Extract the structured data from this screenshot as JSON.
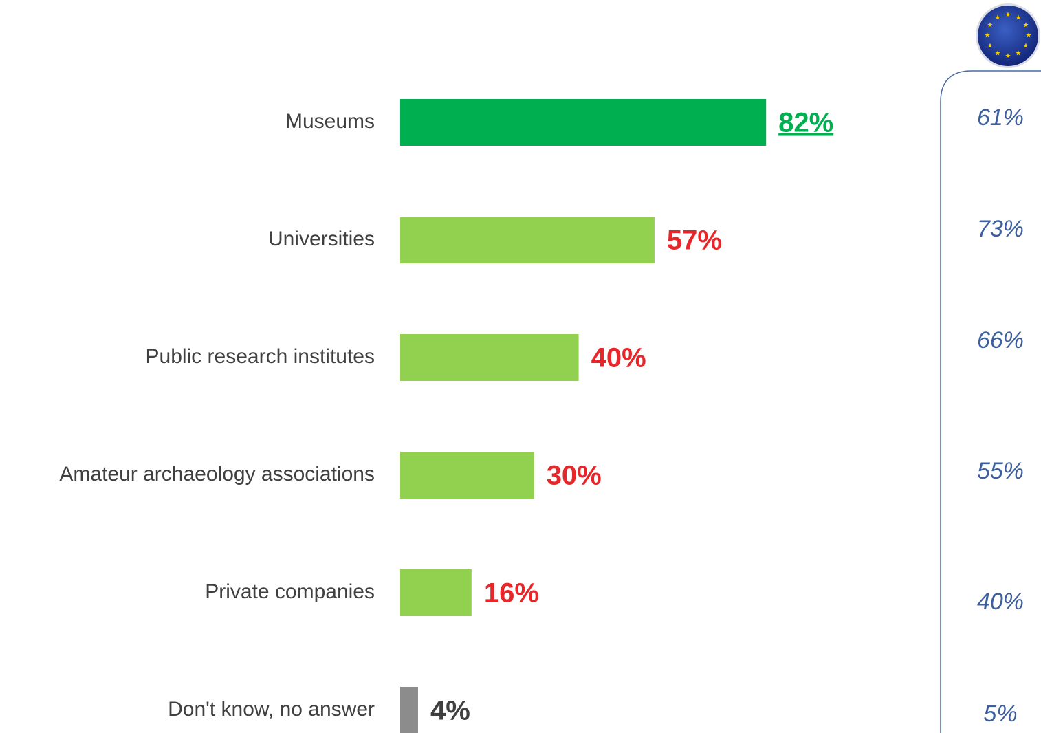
{
  "chart_data": {
    "type": "hbar",
    "categories": [
      "Museums",
      "Universities",
      "Public research institutes",
      "Amateur archaeology associations",
      "Private companies",
      "Don't know, no answer"
    ],
    "values": [
      82,
      57,
      40,
      30,
      16,
      4
    ],
    "value_labels": [
      "82%",
      "57%",
      "40%",
      "30%",
      "16%",
      "4%"
    ],
    "colors": [
      "#00b050",
      "#92d050",
      "#92d050",
      "#92d050",
      "#92d050",
      "#8c8c8c"
    ],
    "label_colors": [
      "#00b050",
      "#e8262a",
      "#e8262a",
      "#e8262a",
      "#e8262a",
      "#404040"
    ],
    "xlim": [
      0,
      100
    ],
    "comparison": {
      "values": [
        61,
        73,
        66,
        55,
        40,
        5
      ],
      "value_labels": [
        "61%",
        "73%",
        "66%",
        "55%",
        "40%",
        "5%"
      ],
      "color": "#3c5fa0"
    }
  }
}
